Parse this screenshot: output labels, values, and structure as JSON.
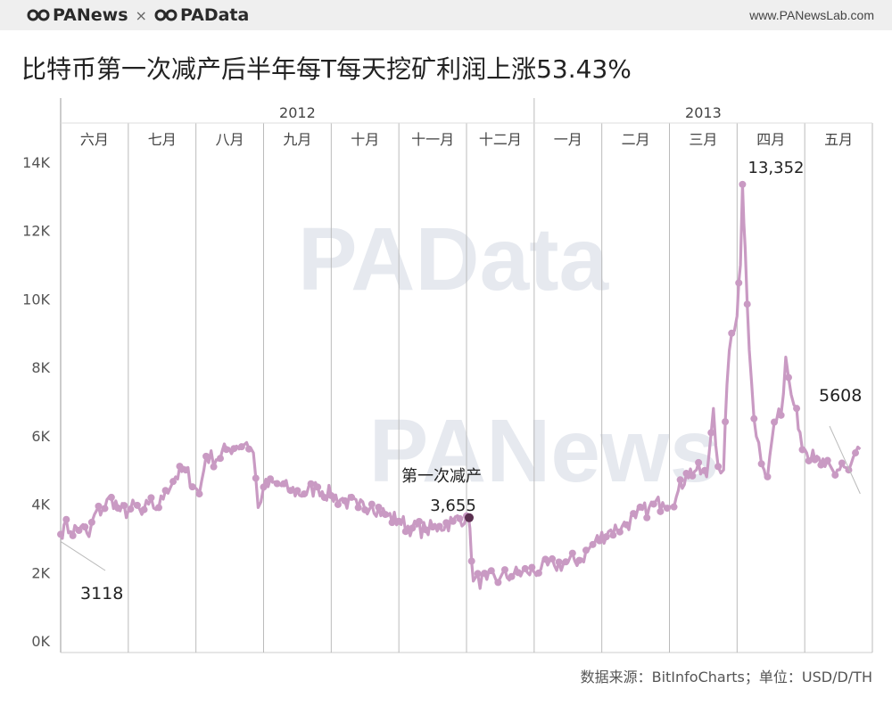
{
  "header": {
    "brand_left": "PANews",
    "brand_sep": "×",
    "brand_right": "PAData",
    "site": "www.PANewsLab.com"
  },
  "watermarks": [
    "PAData",
    "PANews"
  ],
  "source_note": "数据来源：BitInfoCharts；单位：USD/D/TH",
  "colors": {
    "line": "#c99ac3",
    "dot": "#5a2f4f",
    "grid": "#bbbbbb"
  },
  "chart_data": {
    "type": "line",
    "title": "比特币第一次减产后半年每T每天挖矿利润上涨53.43%",
    "years": [
      {
        "label": "2012",
        "start_month": 0,
        "end_month": 7
      },
      {
        "label": "2013",
        "start_month": 7,
        "end_month": 12
      }
    ],
    "months": [
      "六月",
      "七月",
      "八月",
      "九月",
      "十月",
      "十一月",
      "十二月",
      "一月",
      "二月",
      "三月",
      "四月",
      "五月"
    ],
    "y_ticks": [
      0,
      2000,
      4000,
      6000,
      8000,
      10000,
      12000,
      14000
    ],
    "y_tick_labels": [
      "0K",
      "2K",
      "4K",
      "6K",
      "8K",
      "10K",
      "12K",
      "14K"
    ],
    "ylim": [
      0,
      14800
    ],
    "x_unit": "months since start of June 2012",
    "xlim": [
      0,
      11.9
    ],
    "series": [
      {
        "name": "每T每天挖矿利润",
        "points": [
          [
            0.0,
            3118
          ],
          [
            0.05,
            3400
          ],
          [
            0.15,
            3200
          ],
          [
            0.3,
            3350
          ],
          [
            0.42,
            3050
          ],
          [
            0.5,
            3700
          ],
          [
            0.62,
            3850
          ],
          [
            0.75,
            4200
          ],
          [
            0.88,
            3800
          ],
          [
            1.0,
            3800
          ],
          [
            1.1,
            3950
          ],
          [
            1.2,
            3700
          ],
          [
            1.3,
            4000
          ],
          [
            1.45,
            3900
          ],
          [
            1.55,
            4400
          ],
          [
            1.7,
            4800
          ],
          [
            1.85,
            5000
          ],
          [
            1.98,
            4500
          ],
          [
            2.05,
            4300
          ],
          [
            2.15,
            5400
          ],
          [
            2.3,
            5300
          ],
          [
            2.45,
            5600
          ],
          [
            2.6,
            5700
          ],
          [
            2.75,
            5800
          ],
          [
            2.85,
            5500
          ],
          [
            2.92,
            3900
          ],
          [
            3.0,
            4500
          ],
          [
            3.2,
            4600
          ],
          [
            3.4,
            4400
          ],
          [
            3.6,
            4300
          ],
          [
            3.8,
            4500
          ],
          [
            4.0,
            4250
          ],
          [
            4.2,
            4100
          ],
          [
            4.4,
            3900
          ],
          [
            4.6,
            4000
          ],
          [
            4.8,
            3700
          ],
          [
            5.0,
            3500
          ],
          [
            5.2,
            3300
          ],
          [
            5.4,
            3250
          ],
          [
            5.6,
            3350
          ],
          [
            5.8,
            3500
          ],
          [
            6.0,
            3655
          ],
          [
            6.05,
            3300
          ],
          [
            6.1,
            1750
          ],
          [
            6.3,
            1800
          ],
          [
            6.5,
            1850
          ],
          [
            6.7,
            1950
          ],
          [
            6.9,
            2000
          ],
          [
            7.1,
            2100
          ],
          [
            7.3,
            2200
          ],
          [
            7.5,
            2300
          ],
          [
            7.7,
            2400
          ],
          [
            7.9,
            2900
          ],
          [
            8.1,
            3200
          ],
          [
            8.3,
            3350
          ],
          [
            8.5,
            3600
          ],
          [
            8.7,
            3900
          ],
          [
            8.9,
            4050
          ],
          [
            9.1,
            4200
          ],
          [
            9.25,
            4900
          ],
          [
            9.4,
            5000
          ],
          [
            9.55,
            4800
          ],
          [
            9.65,
            6800
          ],
          [
            9.72,
            5100
          ],
          [
            9.8,
            5000
          ],
          [
            9.85,
            7500
          ],
          [
            9.92,
            9000
          ],
          [
            10.0,
            9500
          ],
          [
            10.05,
            11000
          ],
          [
            10.08,
            13352
          ],
          [
            10.12,
            11500
          ],
          [
            10.18,
            8500
          ],
          [
            10.25,
            6500
          ],
          [
            10.32,
            5800
          ],
          [
            10.4,
            5000
          ],
          [
            10.45,
            4800
          ],
          [
            10.55,
            6400
          ],
          [
            10.65,
            6600
          ],
          [
            10.72,
            8300
          ],
          [
            10.8,
            7200
          ],
          [
            10.88,
            6800
          ],
          [
            10.93,
            6100
          ],
          [
            11.0,
            5600
          ],
          [
            11.15,
            5300
          ],
          [
            11.3,
            5100
          ],
          [
            11.45,
            4850
          ],
          [
            11.55,
            5200
          ],
          [
            11.65,
            5000
          ],
          [
            11.75,
            5500
          ],
          [
            11.82,
            5608
          ]
        ]
      }
    ],
    "annotations": [
      {
        "label": "3118",
        "x": 0.0,
        "y": 3118
      },
      {
        "label": "3,655",
        "x": 6.0,
        "y": 3655,
        "note": "第一次减产"
      },
      {
        "label": "13,352",
        "x": 10.08,
        "y": 13352
      },
      {
        "label": "5608",
        "x": 11.82,
        "y": 5608
      }
    ]
  }
}
